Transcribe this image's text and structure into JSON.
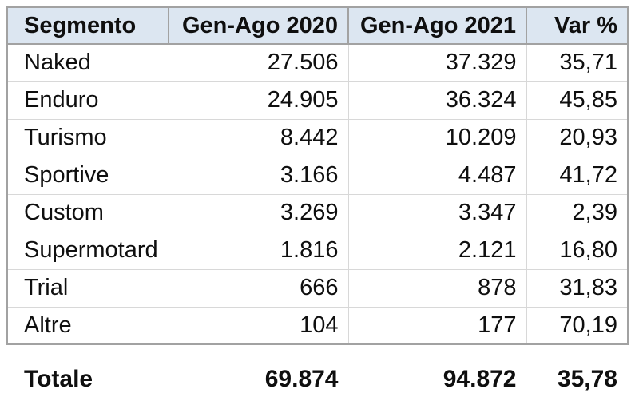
{
  "table": {
    "columns": [
      {
        "label": "Segmento"
      },
      {
        "label": "Gen-Ago 2020"
      },
      {
        "label": "Gen-Ago 2021"
      },
      {
        "label": "Var %"
      }
    ],
    "rows": [
      {
        "segment": "Naked",
        "y2020": "27.506",
        "y2021": "37.329",
        "var": "35,71"
      },
      {
        "segment": "Enduro",
        "y2020": "24.905",
        "y2021": "36.324",
        "var": "45,85"
      },
      {
        "segment": "Turismo",
        "y2020": "8.442",
        "y2021": "10.209",
        "var": "20,93"
      },
      {
        "segment": "Sportive",
        "y2020": "3.166",
        "y2021": "4.487",
        "var": "41,72"
      },
      {
        "segment": "Custom",
        "y2020": "3.269",
        "y2021": "3.347",
        "var": "2,39"
      },
      {
        "segment": "Supermotard",
        "y2020": "1.816",
        "y2021": "2.121",
        "var": "16,80"
      },
      {
        "segment": "Trial",
        "y2020": "666",
        "y2021": "878",
        "var": "31,83"
      },
      {
        "segment": "Altre",
        "y2020": "104",
        "y2021": "177",
        "var": "70,19"
      }
    ],
    "total": {
      "label": "Totale",
      "y2020": "69.874",
      "y2021": "94.872",
      "var": "35,78"
    }
  },
  "colors": {
    "header_bg": "#dce6f1",
    "border_strong": "#a2a2a2",
    "border_light": "#d8d8d8",
    "text": "#0f0f0f"
  },
  "chart_data": {
    "type": "table",
    "title": "",
    "columns": [
      "Segmento",
      "Gen-Ago 2020",
      "Gen-Ago 2021",
      "Var %"
    ],
    "rows": [
      [
        "Naked",
        27506,
        37329,
        35.71
      ],
      [
        "Enduro",
        24905,
        36324,
        45.85
      ],
      [
        "Turismo",
        8442,
        10209,
        20.93
      ],
      [
        "Sportive",
        3166,
        4487,
        41.72
      ],
      [
        "Custom",
        3269,
        3347,
        2.39
      ],
      [
        "Supermotard",
        1816,
        2121,
        16.8
      ],
      [
        "Trial",
        666,
        878,
        31.83
      ],
      [
        "Altre",
        104,
        177,
        70.19
      ]
    ],
    "total_row": [
      "Totale",
      69874,
      94872,
      35.78
    ],
    "number_format": "it-IT (dot thousands separator, comma decimal)"
  }
}
